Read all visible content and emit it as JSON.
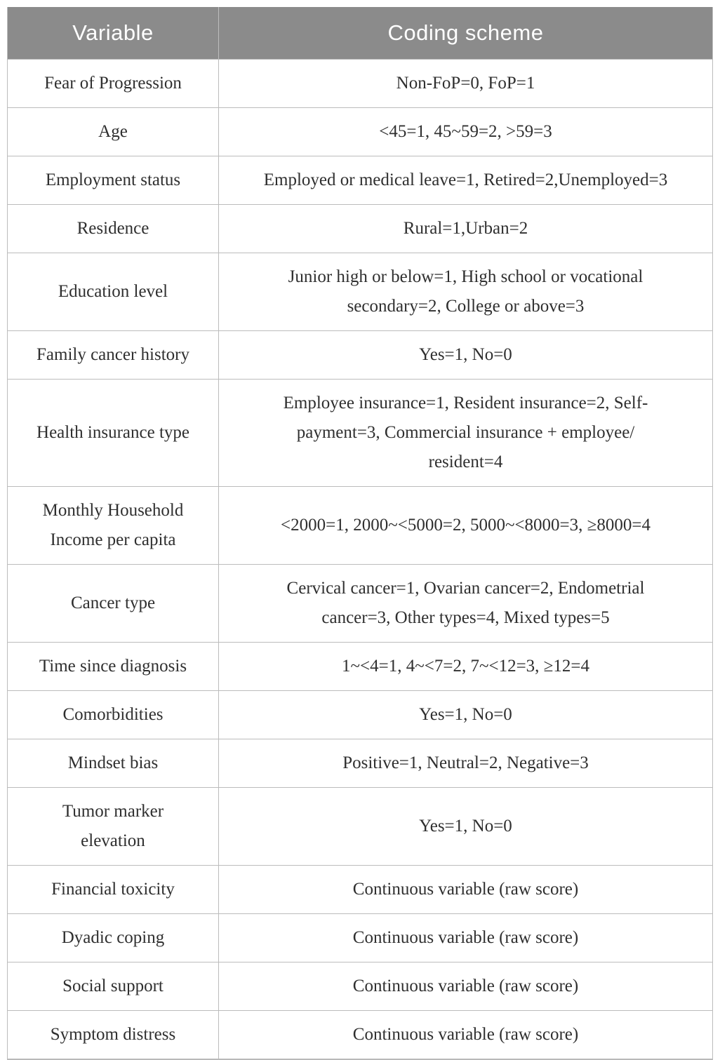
{
  "table": {
    "headers": {
      "variable": "Variable",
      "coding": "Coding scheme"
    },
    "rows": [
      {
        "variable": "Fear of Progression",
        "coding": "Non-FoP=0, FoP=1"
      },
      {
        "variable": "Age",
        "coding": "<45=1, 45~59=2, >59=3"
      },
      {
        "variable": "Employment status",
        "coding": "Employed or medical leave=1, Retired=2,Unemployed=3"
      },
      {
        "variable": "Residence",
        "coding": "Rural=1,Urban=2"
      },
      {
        "variable": "Education level",
        "coding": "Junior high or below=1, High school or vocational\nsecondary=2, College or above=3"
      },
      {
        "variable": "Family cancer history",
        "coding": "Yes=1, No=0"
      },
      {
        "variable": "Health insurance type",
        "coding": "Employee insurance=1, Resident insurance=2, Self-\npayment=3, Commercial insurance + employee/\nresident=4"
      },
      {
        "variable": "Monthly Household\nIncome per capita",
        "coding": "<2000=1, 2000~<5000=2, 5000~<8000=3, ≥8000=4"
      },
      {
        "variable": "Cancer type",
        "coding": "Cervical cancer=1, Ovarian cancer=2, Endometrial\ncancer=3, Other types=4, Mixed types=5"
      },
      {
        "variable": "Time since diagnosis",
        "coding": "1~<4=1, 4~<7=2, 7~<12=3, ≥12=4"
      },
      {
        "variable": "Comorbidities",
        "coding": "Yes=1, No=0"
      },
      {
        "variable": "Mindset bias",
        "coding": "Positive=1, Neutral=2, Negative=3"
      },
      {
        "variable": "Tumor marker\nelevation",
        "coding": "Yes=1, No=0"
      },
      {
        "variable": "Financial toxicity",
        "coding": "Continuous variable (raw score)"
      },
      {
        "variable": "Dyadic coping",
        "coding": "Continuous variable (raw score)"
      },
      {
        "variable": "Social support",
        "coding": "Continuous variable (raw score)"
      },
      {
        "variable": "Symptom distress",
        "coding": "Continuous variable (raw score)"
      }
    ]
  },
  "colors": {
    "header_bg": "#8b8b8b",
    "header_text": "#ffffff",
    "body_text": "#2f2f2f",
    "grid_line": "#bcbcbc"
  }
}
